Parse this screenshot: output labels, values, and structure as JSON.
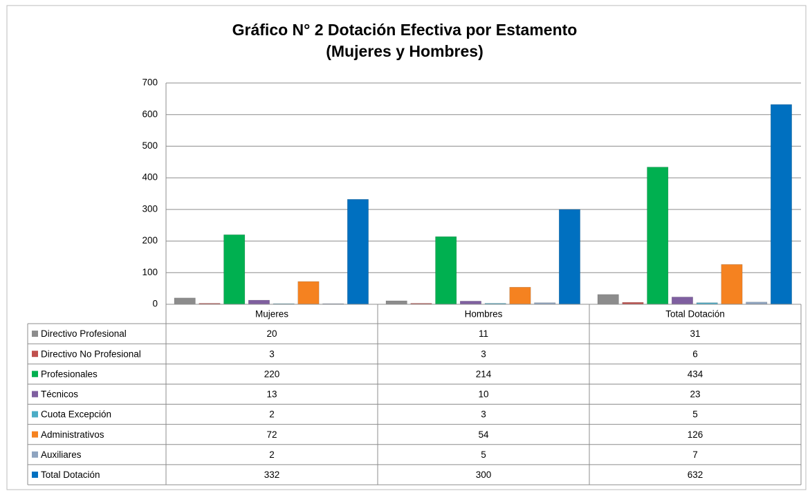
{
  "chart_data": {
    "type": "bar",
    "title": "Gráfico N° 2 Dotación Efectiva por Estamento",
    "subtitle": "(Mujeres y Hombres)",
    "categories": [
      "Mujeres",
      "Hombres",
      "Total Dotación"
    ],
    "series": [
      {
        "name": "Directivo Profesional",
        "color": "#8c8c8c",
        "values": [
          20,
          11,
          31
        ]
      },
      {
        "name": "Directivo No Profesional",
        "color": "#c0504d",
        "values": [
          3,
          3,
          6
        ]
      },
      {
        "name": "Profesionales",
        "color": "#00b050",
        "values": [
          220,
          214,
          434
        ]
      },
      {
        "name": "Técnicos",
        "color": "#7f5fa0",
        "values": [
          13,
          10,
          23
        ]
      },
      {
        "name": "Cuota Excepción",
        "color": "#4bacc6",
        "values": [
          2,
          3,
          5
        ]
      },
      {
        "name": "Administrativos",
        "color": "#f58220",
        "values": [
          72,
          54,
          126
        ]
      },
      {
        "name": "Auxiliares",
        "color": "#8ea4c0",
        "values": [
          2,
          5,
          7
        ]
      },
      {
        "name": "Total Dotación",
        "color": "#0070c0",
        "values": [
          332,
          300,
          632
        ]
      }
    ],
    "ylim": [
      0,
      700
    ],
    "yticks": [
      0,
      100,
      200,
      300,
      400,
      500,
      600,
      700
    ],
    "grid": true
  }
}
